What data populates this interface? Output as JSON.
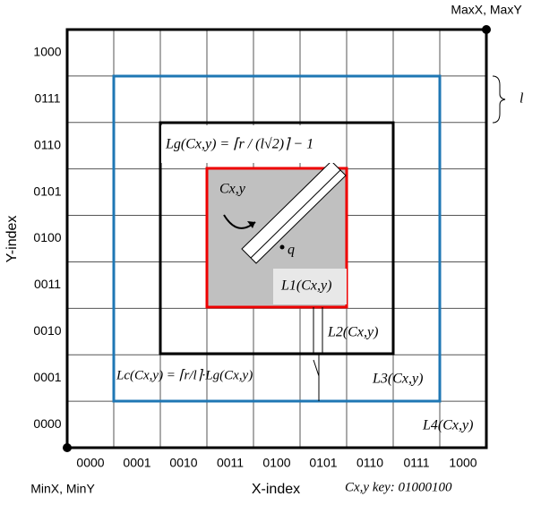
{
  "corners": {
    "max": "MaxX, MaxY",
    "min": "MinX, MinY"
  },
  "axes": {
    "x_label": "X-index",
    "y_label": "Y-index"
  },
  "x_ticks": [
    "0000",
    "0001",
    "0010",
    "0011",
    "0100",
    "0101",
    "0110",
    "0111",
    "1000"
  ],
  "y_ticks": [
    "1000",
    "0111",
    "0110",
    "0101",
    "0100",
    "0011",
    "0010",
    "0001",
    "0000"
  ],
  "labels": {
    "cell_size": "l",
    "lg": "Lg(Cx,y) = ⌈r / (l√2)⌉ − 1",
    "cell": "Cx,y",
    "point": "q",
    "l1": "L1(Cx,y)",
    "l2": "L2(Cx,y)",
    "l3": "L3(Cx,y)",
    "l4": "L4(Cx,y)",
    "lc": "Lc(Cx,y) = ⌈r/l⌉·Lg(Cx,y)",
    "key": "Cx,y key: 01000100"
  }
}
